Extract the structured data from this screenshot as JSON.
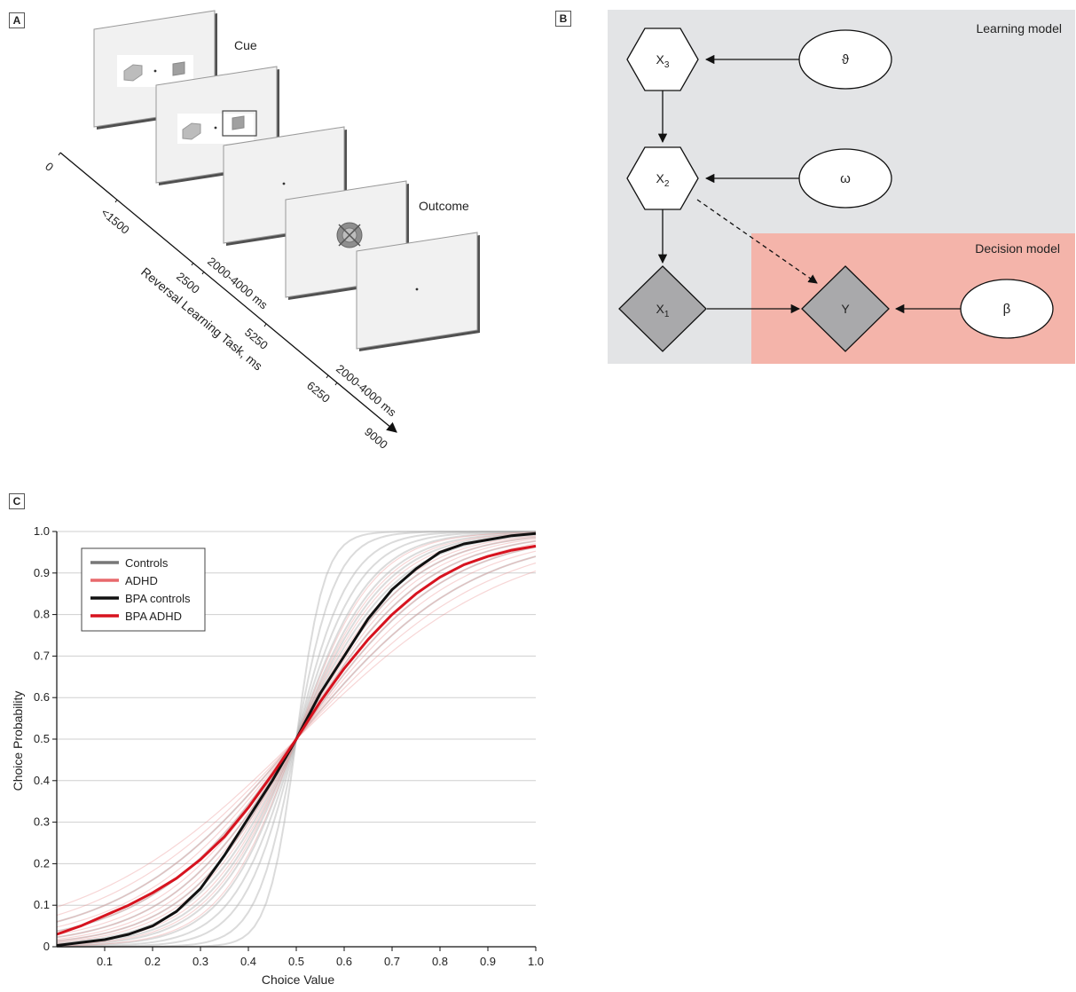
{
  "panels": {
    "a": {
      "label": "A"
    },
    "b": {
      "label": "B"
    },
    "c": {
      "label": "C"
    }
  },
  "task": {
    "cue_label": "Cue",
    "outcome_label": "Outcome",
    "axis_title": "Reversal Learning Task, ms",
    "timeline_ticks": [
      "0",
      "<1500",
      "2500",
      "2000-4000 ms",
      "5250",
      "6250",
      "2000-4000 ms",
      "9000"
    ]
  },
  "model": {
    "learning_model_label": "Learning model",
    "decision_model_label": "Decision model",
    "nodes": {
      "x3": {
        "label": "X",
        "sub": "3"
      },
      "x2": {
        "label": "X",
        "sub": "2"
      },
      "x1": {
        "label": "X",
        "sub": "1"
      },
      "y": {
        "label": "Y"
      },
      "theta": {
        "label": "ϑ"
      },
      "omega": {
        "label": "ω"
      },
      "beta": {
        "label": "β"
      }
    },
    "colors": {
      "learning_bg": "#e3e4e6",
      "decision_bg": "#f4b4aa",
      "state_fill": "#a9a9ab"
    }
  },
  "chart_data": {
    "type": "line",
    "xlabel": "Choice Value",
    "ylabel": "Choice Probability",
    "xlim": [
      0,
      1.0
    ],
    "ylim": [
      0,
      1.0
    ],
    "x_ticks": [
      "0.1",
      "0.2",
      "0.3",
      "0.4",
      "0.5",
      "0.6",
      "0.7",
      "0.8",
      "0.9",
      "1.0"
    ],
    "y_ticks": [
      "0",
      "0.1",
      "0.2",
      "0.3",
      "0.4",
      "0.5",
      "0.6",
      "0.7",
      "0.8",
      "0.9",
      "1.0"
    ],
    "grid": true,
    "legend_position": "top-left",
    "x": [
      0,
      0.05,
      0.1,
      0.15,
      0.2,
      0.25,
      0.3,
      0.35,
      0.4,
      0.45,
      0.5,
      0.55,
      0.6,
      0.65,
      0.7,
      0.75,
      0.8,
      0.85,
      0.9,
      0.95,
      1.0
    ],
    "series": [
      {
        "name": "Controls",
        "color": "#777777",
        "values": [
          0.01,
          0.02,
          0.04,
          0.07,
          0.1,
          0.14,
          0.2,
          0.28,
          0.36,
          0.43,
          0.5,
          0.58,
          0.66,
          0.74,
          0.81,
          0.87,
          0.91,
          0.94,
          0.97,
          0.98,
          0.99
        ]
      },
      {
        "name": "ADHD",
        "color": "#e8696c",
        "values": [
          0.04,
          0.06,
          0.09,
          0.12,
          0.15,
          0.19,
          0.24,
          0.3,
          0.37,
          0.43,
          0.5,
          0.57,
          0.63,
          0.7,
          0.76,
          0.81,
          0.85,
          0.88,
          0.91,
          0.93,
          0.95
        ]
      },
      {
        "name": "BPA controls",
        "color": "#111111",
        "values": [
          0.003,
          0.01,
          0.017,
          0.03,
          0.05,
          0.085,
          0.14,
          0.22,
          0.31,
          0.4,
          0.5,
          0.61,
          0.7,
          0.79,
          0.86,
          0.91,
          0.95,
          0.97,
          0.98,
          0.99,
          0.995
        ]
      },
      {
        "name": "BPA ADHD",
        "color": "#d7131f",
        "values": [
          0.03,
          0.05,
          0.075,
          0.1,
          0.13,
          0.165,
          0.21,
          0.265,
          0.335,
          0.415,
          0.5,
          0.59,
          0.67,
          0.74,
          0.8,
          0.85,
          0.89,
          0.92,
          0.94,
          0.955,
          0.965
        ]
      }
    ]
  }
}
